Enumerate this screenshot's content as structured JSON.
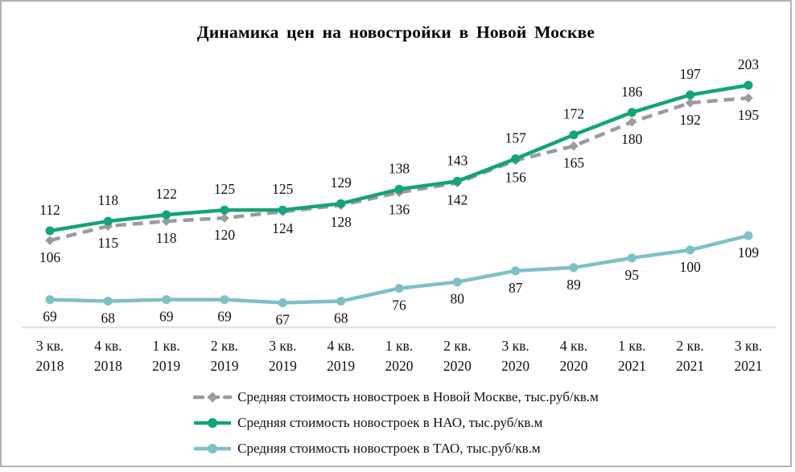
{
  "title": "Динамика цен на новостройки в Новой Москве",
  "chart_data": {
    "type": "line",
    "title": "Динамика цен на новостройки в Новой Москве",
    "categories": [
      "3 кв. 2018",
      "4 кв. 2018",
      "1 кв. 2019",
      "2 кв. 2019",
      "3 кв. 2019",
      "4 кв. 2019",
      "1 кв. 2020",
      "2 кв. 2020",
      "3 кв. 2020",
      "4 кв. 2020",
      "1 кв. 2021",
      "2 кв. 2021",
      "3 кв. 2021"
    ],
    "series": [
      {
        "name": "Средняя стоимость новостроек в Новой Москве, тыс.руб/кв.м",
        "color": "#9b9b9b",
        "style": "dashed",
        "marker": "diamond",
        "label_position": "below",
        "values": [
          106,
          115,
          118,
          120,
          124,
          128,
          136,
          142,
          156,
          165,
          180,
          192,
          195
        ]
      },
      {
        "name": "Средняя стоимость новостроек в НАО, тыс.руб/кв.м",
        "color": "#14a37a",
        "style": "solid",
        "marker": "circle",
        "label_position": "above",
        "values": [
          112,
          118,
          122,
          125,
          125,
          129,
          138,
          143,
          157,
          172,
          186,
          197,
          203
        ]
      },
      {
        "name": "Средняя стоимость новостроек в ТАО, тыс.руб/кв.м",
        "color": "#7fc0c8",
        "style": "solid",
        "marker": "circle",
        "label_position": "below",
        "values": [
          69,
          68,
          69,
          69,
          67,
          68,
          76,
          80,
          87,
          89,
          95,
          100,
          109
        ]
      }
    ],
    "axis_color": "#e3e3e3",
    "data_labels": true,
    "grid": false,
    "legend_position": "bottom",
    "xlabel": "",
    "ylabel": "",
    "units": "тыс.руб/кв.м"
  }
}
